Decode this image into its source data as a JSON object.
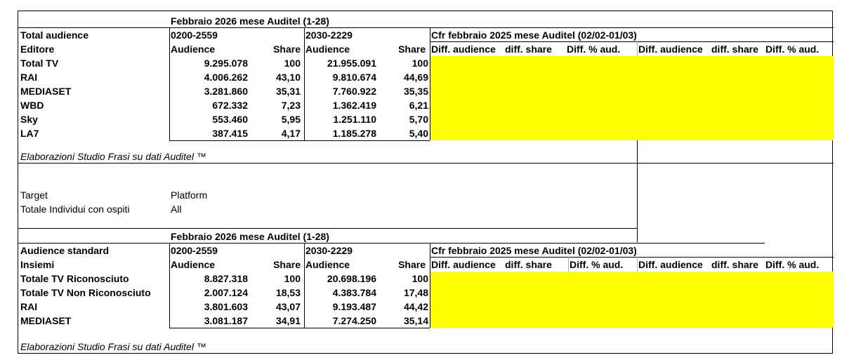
{
  "colors": {
    "highlight": "#ffff00",
    "border": "#000000",
    "divider": "#c9a99a"
  },
  "section1": {
    "period_title": "Febbraio 2026 mese Auditel (1-28)",
    "row_label_title": "Total audience",
    "row_label_sub": "Editore",
    "slot1": "0200-2559",
    "slot2": "2030-2229",
    "col_audience": "Audience",
    "col_share": "Share",
    "compare_title": "Cfr febbraio 2025 mese Auditel (02/02-01/03)",
    "diff_headers": [
      "Diff. audience",
      "diff. share",
      "Diff. % aud.",
      "Diff. audience",
      "diff. share",
      "Diff. % aud."
    ],
    "rows": [
      {
        "label": "Total TV",
        "aud1": "9.295.078",
        "share1": "100",
        "aud2": "21.955.091",
        "share2": "100"
      },
      {
        "label": "RAI",
        "aud1": "4.006.262",
        "share1": "43,10",
        "aud2": "9.810.674",
        "share2": "44,69"
      },
      {
        "label": "MEDIASET",
        "aud1": "3.281.860",
        "share1": "35,31",
        "aud2": "7.760.922",
        "share2": "35,35"
      },
      {
        "label": "WBD",
        "aud1": "672.332",
        "share1": "7,23",
        "aud2": "1.362.419",
        "share2": "6,21"
      },
      {
        "label": "Sky",
        "aud1": "553.460",
        "share1": "5,95",
        "aud2": "1.251.110",
        "share2": "5,70"
      },
      {
        "label": "LA7",
        "aud1": "387.415",
        "share1": "4,17",
        "aud2": "1.185.278",
        "share2": "5,40"
      }
    ],
    "footnote": "Elaborazioni Studio Frasi su dati Auditel ™"
  },
  "meta": {
    "target_label": "Target",
    "target_value": "Platform",
    "individuals_label": "Totale Individui con ospiti",
    "individuals_value": "All"
  },
  "section2": {
    "period_title": "Febbraio 2026 mese Auditel (1-28)",
    "row_label_title": "Audience standard",
    "row_label_sub": "Insiemi",
    "slot1": "0200-2559",
    "slot2": "2030-2229",
    "col_audience": "Audience",
    "col_share": "Share",
    "compare_title": "Cfr febbraio 2025 mese Auditel (02/02-01/03)",
    "diff_headers": [
      "Diff. audience",
      "diff. share",
      "Diff. % aud.",
      "Diff. audience",
      "diff. share",
      "Diff. % aud."
    ],
    "rows": [
      {
        "label": "Totale TV Riconosciuto",
        "aud1": "8.827.318",
        "share1": "100",
        "aud2": "20.698.196",
        "share2": "100"
      },
      {
        "label": "Totale TV Non Riconosciuto",
        "aud1": "2.007.124",
        "share1": "18,53",
        "aud2": "4.383.784",
        "share2": "17,48"
      },
      {
        "label": "RAI",
        "aud1": "3.801.603",
        "share1": "43,07",
        "aud2": "9.193.487",
        "share2": "44,42"
      },
      {
        "label": "MEDIASET",
        "aud1": "3.081.187",
        "share1": "34,91",
        "aud2": "7.274.250",
        "share2": "35,14"
      }
    ],
    "footnote": "Elaborazioni Studio Frasi su dati Auditel ™"
  }
}
